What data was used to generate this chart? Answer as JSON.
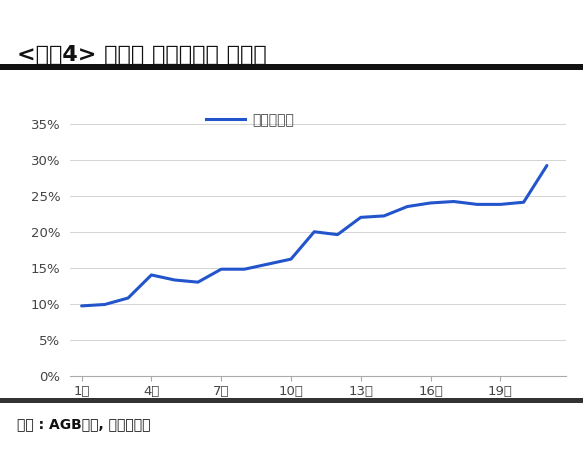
{
  "title": "<그림4> 드라마 펜트하우스 시청률",
  "source_text": "자료 : AGB닐슨, 현대차증권",
  "legend_label": "펜트하우스",
  "x_values": [
    1,
    2,
    3,
    4,
    5,
    6,
    7,
    8,
    9,
    10,
    11,
    12,
    13,
    14,
    15,
    16,
    17,
    18,
    19,
    20,
    21
  ],
  "y_values": [
    0.097,
    0.099,
    0.108,
    0.14,
    0.133,
    0.13,
    0.148,
    0.148,
    0.155,
    0.162,
    0.2,
    0.196,
    0.22,
    0.222,
    0.235,
    0.24,
    0.242,
    0.238,
    0.238,
    0.241,
    0.292
  ],
  "x_ticks": [
    1,
    4,
    7,
    10,
    13,
    16,
    19
  ],
  "x_tick_labels": [
    "1회",
    "4회",
    "7회",
    "10회",
    "13회",
    "16회",
    "19회"
  ],
  "y_ticks": [
    0.0,
    0.05,
    0.1,
    0.15,
    0.2,
    0.25,
    0.3,
    0.35
  ],
  "y_tick_labels": [
    "0%",
    "5%",
    "10%",
    "15%",
    "20%",
    "25%",
    "30%",
    "35%"
  ],
  "ylim": [
    0.0,
    0.375
  ],
  "xlim": [
    0.5,
    21.8
  ],
  "line_color": "#2255cc",
  "line_width": 2.2,
  "background_color": "#ffffff",
  "title_fontsize": 16,
  "tick_fontsize": 9.5,
  "legend_fontsize": 10,
  "source_fontsize": 10,
  "title_bar_color": "#111111",
  "sep_bar_color": "#333333"
}
